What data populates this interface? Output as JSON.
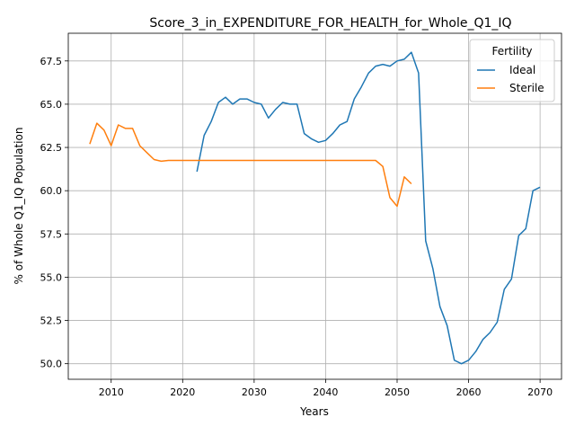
{
  "chart_data": {
    "type": "line",
    "title": "Score_3_in_EXPENDITURE_FOR_HEALTH_for_Whole_Q1_IQ",
    "xlabel": "Years",
    "ylabel": "% of Whole Q1_IQ Population",
    "xlim": [
      2004,
      2073
    ],
    "ylim": [
      49.1,
      69.1
    ],
    "xticks": [
      2010,
      2020,
      2030,
      2040,
      2050,
      2060,
      2070
    ],
    "yticks": [
      50.0,
      52.5,
      55.0,
      57.5,
      60.0,
      62.5,
      65.0,
      67.5
    ],
    "ytick_labels": [
      "50.0",
      "52.5",
      "55.0",
      "57.5",
      "60.0",
      "62.5",
      "65.0",
      "67.5"
    ],
    "grid": true,
    "legend": {
      "title": "Fertility",
      "placement": "top-right"
    },
    "series": [
      {
        "name": "Ideal",
        "color": "#1f77b4",
        "x": [
          2022,
          2023,
          2024,
          2025,
          2026,
          2027,
          2028,
          2029,
          2030,
          2031,
          2032,
          2033,
          2034,
          2035,
          2036,
          2037,
          2038,
          2039,
          2040,
          2041,
          2042,
          2043,
          2044,
          2045,
          2046,
          2047,
          2048,
          2049,
          2050,
          2051,
          2052,
          2053,
          2054,
          2055,
          2056,
          2057,
          2058,
          2059,
          2060,
          2061,
          2062,
          2063,
          2064,
          2065,
          2066,
          2067,
          2068,
          2069,
          2070
        ],
        "y": [
          61.1,
          63.2,
          64.0,
          65.1,
          65.4,
          65.0,
          65.3,
          65.3,
          65.1,
          65.0,
          64.2,
          64.7,
          65.1,
          65.0,
          65.0,
          63.3,
          63.0,
          62.8,
          62.9,
          63.3,
          63.8,
          64.0,
          65.3,
          66.0,
          66.8,
          67.2,
          67.3,
          67.2,
          67.5,
          67.6,
          68.0,
          66.8,
          57.1,
          55.5,
          53.3,
          52.2,
          50.2,
          50.0,
          50.2,
          50.7,
          51.4,
          51.8,
          52.4,
          54.3,
          54.9,
          57.4,
          57.8,
          60.0,
          60.2
        ]
      },
      {
        "name": "Sterile",
        "color": "#ff7f0e",
        "x": [
          2007,
          2008,
          2009,
          2010,
          2011,
          2012,
          2013,
          2014,
          2015,
          2016,
          2017,
          2018,
          2019,
          2020,
          2021,
          2022,
          2023,
          2024,
          2025,
          2026,
          2027,
          2028,
          2029,
          2030,
          2031,
          2032,
          2033,
          2034,
          2035,
          2036,
          2037,
          2038,
          2039,
          2040,
          2041,
          2042,
          2043,
          2044,
          2045,
          2046,
          2047,
          2048,
          2049,
          2050,
          2051,
          2052
        ],
        "y": [
          62.7,
          63.9,
          63.5,
          62.6,
          63.8,
          63.6,
          63.6,
          62.6,
          62.2,
          61.8,
          61.7,
          61.75,
          61.75,
          61.75,
          61.75,
          61.75,
          61.75,
          61.75,
          61.75,
          61.75,
          61.75,
          61.75,
          61.75,
          61.75,
          61.75,
          61.75,
          61.75,
          61.75,
          61.75,
          61.75,
          61.75,
          61.75,
          61.75,
          61.75,
          61.75,
          61.75,
          61.75,
          61.75,
          61.75,
          61.75,
          61.75,
          61.4,
          59.6,
          59.1,
          60.8,
          60.4
        ]
      }
    ]
  }
}
